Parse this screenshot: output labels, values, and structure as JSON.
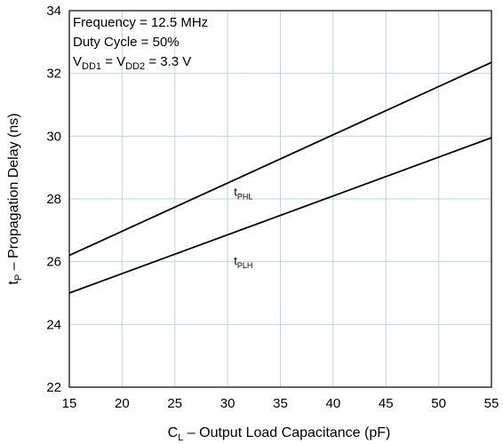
{
  "chart_data": {
    "type": "line",
    "x_axis": {
      "label_main": "C",
      "label_sub": "L",
      "label_rest": " – Output Load Capacitance (pF)",
      "range": [
        15,
        55
      ],
      "ticks": [
        15,
        20,
        25,
        30,
        35,
        40,
        45,
        50,
        55
      ]
    },
    "y_axis": {
      "label_main": "t",
      "label_sub": "P",
      "label_rest": " – Propagation Delay (ns)",
      "range": [
        22,
        34
      ],
      "ticks": [
        22,
        24,
        26,
        28,
        30,
        32,
        34
      ]
    },
    "grid": true,
    "annotations": {
      "frequency": "Frequency = 12.5 MHz",
      "duty_cycle": "Duty Cycle = 50%",
      "vdd_a": "V",
      "vdd_a_sub": "DD1",
      "vdd_eq": " = V",
      "vdd_b_sub": "DD2",
      "vdd_value": " = 3.3 V"
    },
    "series": [
      {
        "name_main": "t",
        "name_sub": "PHL",
        "label_at": [
          30.6,
          28.1
        ],
        "x": [
          15,
          55
        ],
        "y": [
          26.2,
          32.35
        ]
      },
      {
        "name_main": "t",
        "name_sub": "PLH",
        "label_at": [
          30.6,
          25.9
        ],
        "x": [
          15,
          55
        ],
        "y": [
          25.0,
          29.95
        ]
      }
    ]
  }
}
